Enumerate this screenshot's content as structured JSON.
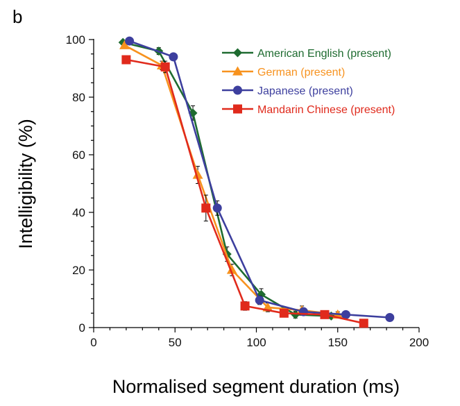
{
  "panel_label": "b",
  "chart_data": {
    "type": "line",
    "xlabel": "Normalised segment duration (ms)",
    "ylabel": "Intelligibility (%)",
    "xlim": [
      0,
      200
    ],
    "ylim": [
      0,
      100
    ],
    "xticks": [
      0,
      50,
      100,
      150,
      200
    ],
    "yticks": [
      0,
      20,
      40,
      60,
      80,
      100
    ],
    "x_tick_labels": [
      "0",
      "50",
      "100",
      "150",
      "200"
    ],
    "y_tick_labels": [
      "0",
      "20",
      "40",
      "60",
      "80",
      "100"
    ],
    "grid": false,
    "legend_position": "top-right",
    "series": [
      {
        "name": "American English (present)",
        "color": "#1e6b30",
        "marker": "diamond",
        "x": [
          18,
          40,
          61,
          82,
          103,
          124,
          146
        ],
        "y": [
          99,
          96,
          74.5,
          25.5,
          11.5,
          4.5,
          4
        ],
        "err": [
          0,
          1.2,
          2.5,
          2.5,
          2,
          1.2,
          0.8
        ]
      },
      {
        "name": "German (present)",
        "color": "#f7921e",
        "marker": "triangle",
        "x": [
          19,
          42,
          64,
          85,
          107,
          128,
          150
        ],
        "y": [
          98,
          91,
          53,
          20,
          7,
          6,
          4.5
        ],
        "err": [
          0,
          1.5,
          3,
          2,
          1.5,
          1.5,
          1
        ]
      },
      {
        "name": "Japanese (present)",
        "color": "#3d3f9e",
        "marker": "circle",
        "x": [
          22,
          49,
          76,
          102,
          129,
          155,
          182
        ],
        "y": [
          99.5,
          94,
          41.5,
          9.5,
          5.5,
          4.5,
          3.5
        ],
        "err": [
          0,
          0,
          2.5,
          1.5,
          1,
          0.5,
          0
        ]
      },
      {
        "name": "Mandarin Chinese (present)",
        "color": "#e02a1c",
        "marker": "square",
        "x": [
          20,
          44,
          69,
          93,
          117,
          142,
          166
        ],
        "y": [
          93,
          90.5,
          41.5,
          7.5,
          5,
          4.5,
          1.5
        ],
        "err": [
          0,
          2,
          4.5,
          1.5,
          1,
          1,
          0.5
        ]
      }
    ]
  }
}
